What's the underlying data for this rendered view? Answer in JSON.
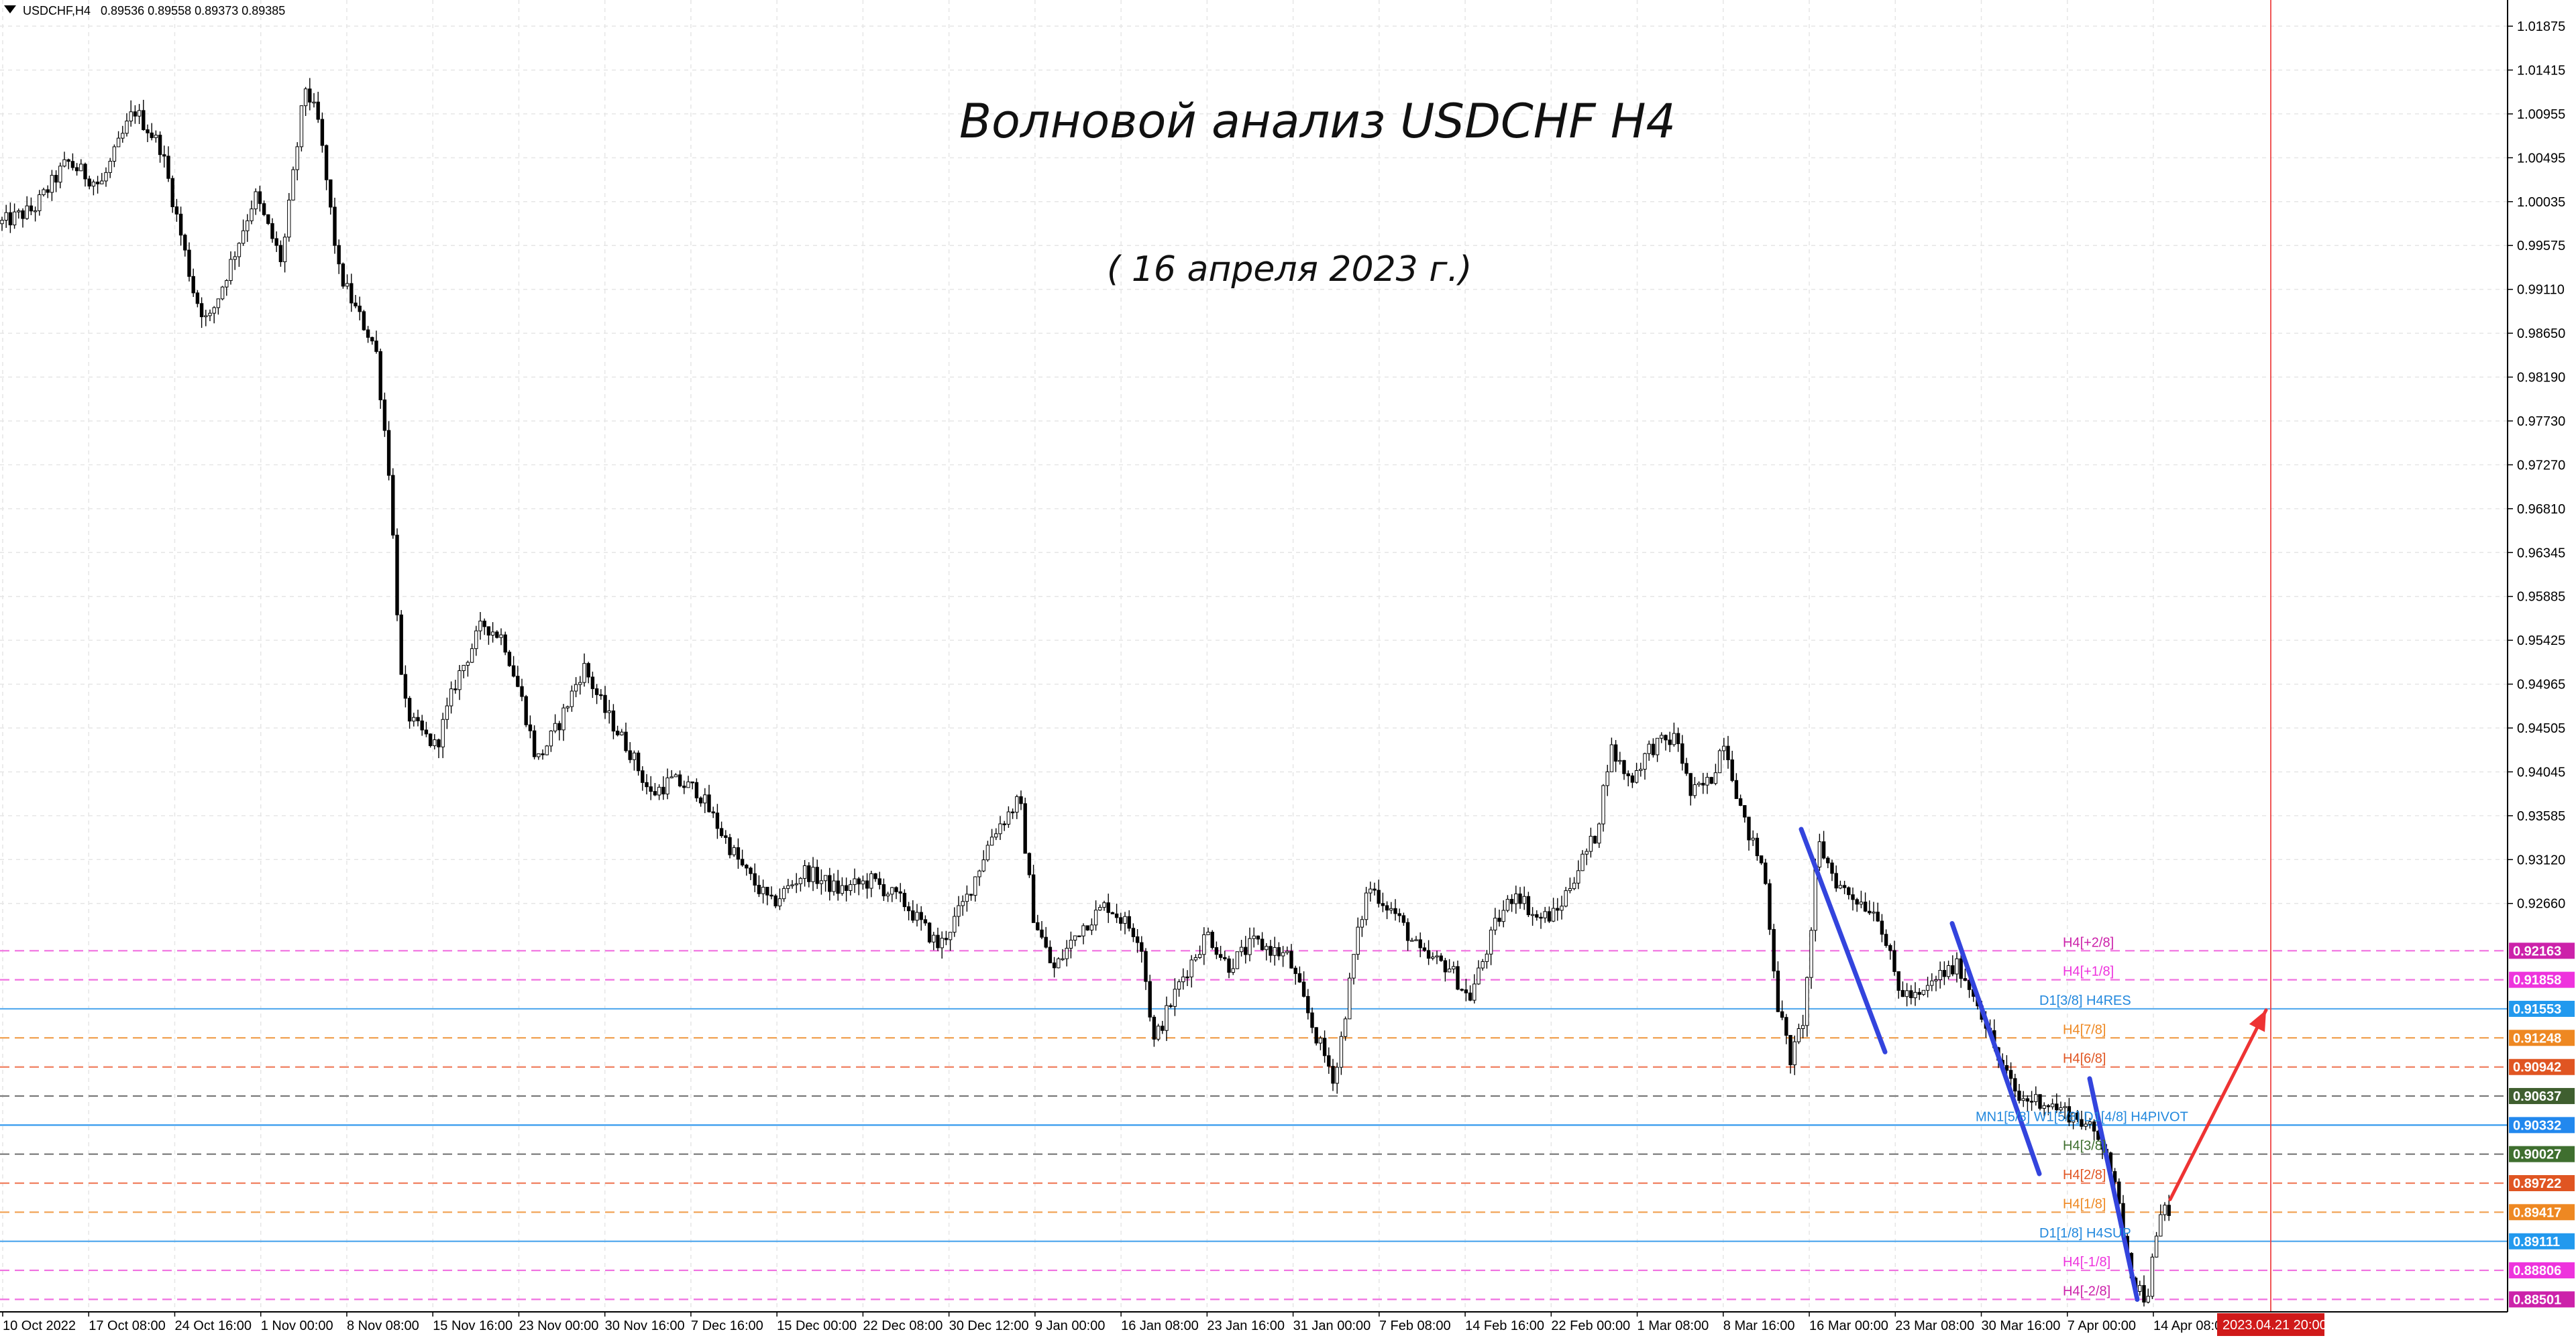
{
  "header": {
    "symbol": "USDCHF,H4",
    "ohlc": "0.89536 0.89558 0.89373 0.89385"
  },
  "title": "Волновой анализ USDCHF H4",
  "subtitle": "( 16 апреля 2023 г.)",
  "chart_data": {
    "type": "candlestick",
    "symbol": "USDCHF",
    "timeframe": "H4",
    "ylim": [
      0.8837,
      1.0215
    ],
    "y_ticks": [
      "1.01875",
      "1.01415",
      "1.00955",
      "1.00495",
      "1.00035",
      "0.99575",
      "0.99110",
      "0.98650",
      "0.98190",
      "0.97730",
      "0.97270",
      "0.96810",
      "0.96345",
      "0.95885",
      "0.95425",
      "0.94965",
      "0.94505",
      "0.94045",
      "0.93585",
      "0.93120",
      "0.92660"
    ],
    "x_ticks": [
      "10 Oct 2022",
      "17 Oct 08:00",
      "24 Oct 16:00",
      "1 Nov 00:00",
      "8 Nov 08:00",
      "15 Nov 16:00",
      "23 Nov 00:00",
      "30 Nov 16:00",
      "7 Dec 16:00",
      "15 Dec 00:00",
      "22 Dec 08:00",
      "30 Dec 12:00",
      "9 Jan 00:00",
      "16 Jan 08:00",
      "23 Jan 16:00",
      "31 Jan 00:00",
      "7 Feb 08:00",
      "14 Feb 16:00",
      "22 Feb 00:00",
      "1 Mar 08:00",
      "8 Mar 16:00",
      "16 Mar 00:00",
      "23 Mar 08:00",
      "30 Mar 16:00",
      "7 Apr 00:00",
      "14 Apr 08:00"
    ],
    "x_highlight": "2023.04.21 20:00",
    "price_path": [
      [
        0,
        0.998
      ],
      [
        50,
        0.9995
      ],
      [
        100,
        1.0045
      ],
      [
        150,
        1.002
      ],
      [
        200,
        1.01
      ],
      [
        240,
        1.006
      ],
      [
        290,
        0.9905
      ],
      [
        310,
        0.9875
      ],
      [
        350,
        0.995
      ],
      [
        380,
        1.001
      ],
      [
        420,
        0.994
      ],
      [
        455,
        1.0125
      ],
      [
        475,
        1.0085
      ],
      [
        505,
        0.993
      ],
      [
        530,
        0.989
      ],
      [
        560,
        0.985
      ],
      [
        580,
        0.972
      ],
      [
        600,
        0.948
      ],
      [
        615,
        0.9455
      ],
      [
        650,
        0.943
      ],
      [
        680,
        0.95
      ],
      [
        720,
        0.956
      ],
      [
        750,
        0.9545
      ],
      [
        780,
        0.9475
      ],
      [
        800,
        0.9415
      ],
      [
        830,
        0.945
      ],
      [
        870,
        0.9515
      ],
      [
        900,
        0.947
      ],
      [
        940,
        0.9425
      ],
      [
        970,
        0.938
      ],
      [
        1000,
        0.9395
      ],
      [
        1040,
        0.9385
      ],
      [
        1080,
        0.9335
      ],
      [
        1110,
        0.93
      ],
      [
        1150,
        0.9265
      ],
      [
        1200,
        0.93
      ],
      [
        1250,
        0.928
      ],
      [
        1300,
        0.929
      ],
      [
        1350,
        0.9265
      ],
      [
        1400,
        0.922
      ],
      [
        1440,
        0.927
      ],
      [
        1480,
        0.934
      ],
      [
        1520,
        0.9375
      ],
      [
        1540,
        0.9255
      ],
      [
        1570,
        0.9195
      ],
      [
        1610,
        0.924
      ],
      [
        1650,
        0.9265
      ],
      [
        1700,
        0.923
      ],
      [
        1720,
        0.912
      ],
      [
        1760,
        0.9185
      ],
      [
        1800,
        0.9235
      ],
      [
        1830,
        0.92
      ],
      [
        1870,
        0.9225
      ],
      [
        1920,
        0.921
      ],
      [
        1960,
        0.913
      ],
      [
        1990,
        0.908
      ],
      [
        2020,
        0.922
      ],
      [
        2040,
        0.9285
      ],
      [
        2080,
        0.9255
      ],
      [
        2120,
        0.921
      ],
      [
        2160,
        0.92
      ],
      [
        2190,
        0.9165
      ],
      [
        2230,
        0.9245
      ],
      [
        2260,
        0.928
      ],
      [
        2290,
        0.925
      ],
      [
        2320,
        0.9255
      ],
      [
        2350,
        0.93
      ],
      [
        2380,
        0.934
      ],
      [
        2400,
        0.943
      ],
      [
        2430,
        0.9395
      ],
      [
        2460,
        0.943
      ],
      [
        2500,
        0.944
      ],
      [
        2520,
        0.938
      ],
      [
        2550,
        0.9395
      ],
      [
        2570,
        0.944
      ],
      [
        2600,
        0.935
      ],
      [
        2630,
        0.93
      ],
      [
        2650,
        0.916
      ],
      [
        2670,
        0.91
      ],
      [
        2690,
        0.915
      ],
      [
        2710,
        0.933
      ],
      [
        2740,
        0.9285
      ],
      [
        2770,
        0.927
      ],
      [
        2800,
        0.9255
      ],
      [
        2830,
        0.9175
      ],
      [
        2860,
        0.9165
      ],
      [
        2890,
        0.919
      ],
      [
        2920,
        0.92
      ],
      [
        2950,
        0.916
      ],
      [
        2980,
        0.91
      ],
      [
        3010,
        0.906
      ],
      [
        3040,
        0.906
      ],
      [
        3070,
        0.905
      ],
      [
        3100,
        0.904
      ],
      [
        3140,
        0.901
      ],
      [
        3160,
        0.894
      ],
      [
        3180,
        0.887
      ],
      [
        3200,
        0.885
      ],
      [
        3210,
        0.8895
      ],
      [
        3225,
        0.895
      ],
      [
        3235,
        0.8938
      ]
    ],
    "waves": [
      {
        "from": [
          2685,
          0.9344
        ],
        "to": [
          2810,
          0.911
        ],
        "color": "#3344dd"
      },
      {
        "from": [
          2910,
          0.9245
        ],
        "to": [
          3040,
          0.8982
        ],
        "color": "#3344dd"
      },
      {
        "from": [
          3115,
          0.9082
        ],
        "to": [
          3186,
          0.885
        ],
        "color": "#3344dd"
      }
    ],
    "forecast_arrow": {
      "from": [
        3235,
        0.8955
      ],
      "to": [
        3378,
        0.9154
      ],
      "color": "#ee3333"
    },
    "time_marker_x": 3385,
    "levels": [
      {
        "price": 0.92163,
        "label": "H4[+2/8]",
        "price_label": "0.92163",
        "line": "#f070e0",
        "dash": true,
        "text_color": "#cc22aa",
        "bg": "#cc22aa"
      },
      {
        "price": 0.91858,
        "label": "H4[+1/8]",
        "price_label": "0.91858",
        "line": "#f070e0",
        "dash": true,
        "text_color": "#ee33dd",
        "bg": "#ee33dd"
      },
      {
        "price": 0.91553,
        "label": "D1[3/8] H4RES",
        "price_label": "0.91553",
        "line": "#55aaee",
        "dash": false,
        "text_color": "#2288dd",
        "bg": "#2299ee"
      },
      {
        "price": 0.91248,
        "label": "H4[7/8]",
        "price_label": "0.91248",
        "line": "#f0a050",
        "dash": true,
        "text_color": "#ee8822",
        "bg": "#ee8822"
      },
      {
        "price": 0.90942,
        "label": "H4[6/8]",
        "price_label": "0.90942",
        "line": "#f08060",
        "dash": true,
        "text_color": "#e05522",
        "bg": "#e05522"
      },
      {
        "price": 0.90637,
        "label": "",
        "price_label": "0.90637",
        "line": "#777777",
        "dash": true,
        "text_color": "#555555",
        "bg": "#3f5f2f"
      },
      {
        "price": 0.90332,
        "label": "MN1[5/8] W1[5/8] D1[4/8] H4PIVOT",
        "price_label": "0.90332",
        "line": "#3399ee",
        "dash": false,
        "text_color": "#2288dd",
        "bg": "#2288ee"
      },
      {
        "price": 0.90027,
        "label": "H4[3/8]",
        "price_label": "0.90027",
        "line": "#777777",
        "dash": true,
        "text_color": "#3f6f2f",
        "bg": "#3f6f2f"
      },
      {
        "price": 0.89722,
        "label": "H4[2/8]",
        "price_label": "0.89722",
        "line": "#f08060",
        "dash": true,
        "text_color": "#e05522",
        "bg": "#e05522"
      },
      {
        "price": 0.89417,
        "label": "H4[1/8]",
        "price_label": "0.89417",
        "line": "#f0a050",
        "dash": true,
        "text_color": "#ee8822",
        "bg": "#ee8822"
      },
      {
        "price": 0.89111,
        "label": "D1[1/8] H4SUP",
        "price_label": "0.89111",
        "line": "#55aaee",
        "dash": false,
        "text_color": "#2288dd",
        "bg": "#2299ee"
      },
      {
        "price": 0.88806,
        "label": "H4[-1/8]",
        "price_label": "0.88806",
        "line": "#f070e0",
        "dash": true,
        "text_color": "#ee33dd",
        "bg": "#ee33dd"
      },
      {
        "price": 0.88501,
        "label": "H4[-2/8]",
        "price_label": "0.88501",
        "line": "#f070e0",
        "dash": true,
        "text_color": "#cc22aa",
        "bg": "#cc22aa"
      }
    ]
  }
}
